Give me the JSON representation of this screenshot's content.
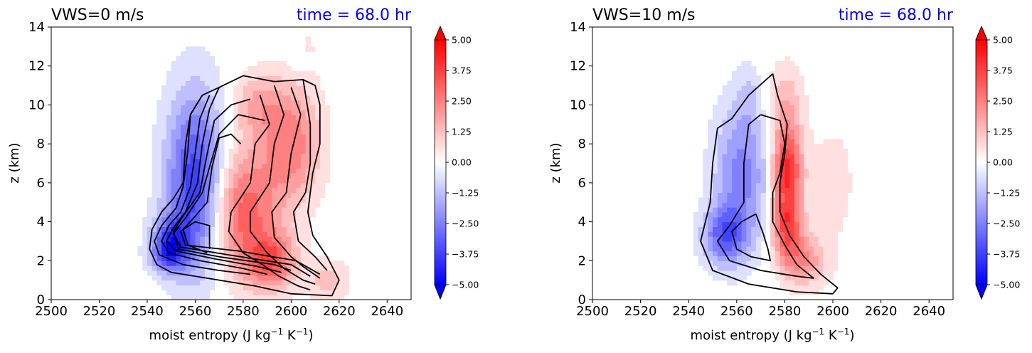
{
  "chart_data": [
    {
      "type": "heatmap",
      "title": "VWS=0 m/s",
      "time_label": "time = 68.0 hr",
      "time_color": "#0000ff",
      "xlabel_prefix": "moist entropy (J kg",
      "xlabel_sup1": "−1",
      "xlabel_mid": " K",
      "xlabel_sup2": "−1",
      "xlabel_suffix": ")",
      "ylabel": "z (km)",
      "xlim": [
        2500,
        2650
      ],
      "ylim": [
        0,
        14
      ],
      "xticks": [
        "2500",
        "2520",
        "2540",
        "2560",
        "2580",
        "2600",
        "2620",
        "2640"
      ],
      "yticks": [
        "0",
        "2",
        "4",
        "6",
        "8",
        "10",
        "12",
        "14"
      ],
      "colorbar": {
        "range": [
          -5,
          5
        ],
        "ticks": [
          "5.00",
          "3.75",
          "2.50",
          "1.25",
          "0.00",
          "−1.25",
          "−2.50",
          "−3.75",
          "−5.00"
        ],
        "colormap": "bwr",
        "extend": "both"
      },
      "features": [
        {
          "kind": "blob",
          "sign": -1,
          "cx": 2560,
          "cy": 6.0,
          "rx": 12,
          "ry": 4.5,
          "amp": 4.0
        },
        {
          "kind": "blob",
          "sign": -1,
          "cx": 2550,
          "cy": 3.0,
          "rx": 8,
          "ry": 1.3,
          "amp": 3.0
        },
        {
          "kind": "blob",
          "sign": -1,
          "cx": 2548,
          "cy": 2.2,
          "rx": 7,
          "ry": 0.8,
          "amp": 1.6
        },
        {
          "kind": "blob",
          "sign": -1,
          "cx": 2605,
          "cy": 12.2,
          "rx": 4,
          "ry": 0.6,
          "amp": 1.0
        },
        {
          "kind": "blob",
          "sign": 1,
          "cx": 2580,
          "cy": 4.5,
          "rx": 14,
          "ry": 3.2,
          "amp": 3.2
        },
        {
          "kind": "blob",
          "sign": 1,
          "cx": 2592,
          "cy": 2.0,
          "rx": 10,
          "ry": 1.4,
          "amp": 3.0
        },
        {
          "kind": "blob",
          "sign": 1,
          "cx": 2600,
          "cy": 8.0,
          "rx": 12,
          "ry": 3.0,
          "amp": 2.6
        },
        {
          "kind": "blob",
          "sign": 1,
          "cx": 2586,
          "cy": 10.0,
          "rx": 10,
          "ry": 1.6,
          "amp": 1.5
        },
        {
          "kind": "blob",
          "sign": 1,
          "cx": 2607,
          "cy": 12.5,
          "rx": 4,
          "ry": 1.2,
          "amp": 0.5
        },
        {
          "kind": "blob",
          "sign": 1,
          "cx": 2615,
          "cy": 1.0,
          "rx": 9,
          "ry": 1.0,
          "amp": 1.2
        }
      ],
      "contours": [
        [
          [
            2563,
            10.5
          ],
          [
            2558,
            9.5
          ],
          [
            2557,
            7.7
          ],
          [
            2555,
            5.8
          ],
          [
            2552,
            4.7
          ],
          [
            2546,
            3.8
          ],
          [
            2543,
            3.0
          ],
          [
            2545,
            2.3
          ],
          [
            2555,
            1.8
          ],
          [
            2570,
            1.5
          ],
          [
            2583,
            1.3
          ]
        ],
        [
          [
            2566,
            10.5
          ],
          [
            2562,
            9.3
          ],
          [
            2560,
            7.5
          ],
          [
            2558,
            5.8
          ],
          [
            2554,
            4.5
          ],
          [
            2549,
            3.8
          ],
          [
            2546,
            3.0
          ],
          [
            2549,
            2.4
          ],
          [
            2562,
            2.0
          ],
          [
            2580,
            1.6
          ],
          [
            2590,
            1.3
          ]
        ],
        [
          [
            2570,
            10.9
          ],
          [
            2566,
            9.8
          ],
          [
            2563,
            8.0
          ],
          [
            2561,
            6.0
          ],
          [
            2556,
            4.5
          ],
          [
            2551,
            3.7
          ],
          [
            2548,
            3.0
          ],
          [
            2552,
            2.5
          ],
          [
            2568,
            2.1
          ],
          [
            2586,
            1.7
          ],
          [
            2596,
            1.4
          ]
        ],
        [
          [
            2583,
            10.3
          ],
          [
            2575,
            10.0
          ],
          [
            2568,
            9.2
          ],
          [
            2565,
            7.5
          ],
          [
            2562,
            5.5
          ],
          [
            2555,
            4.3
          ],
          [
            2551,
            3.5
          ],
          [
            2553,
            2.6
          ],
          [
            2570,
            2.2
          ],
          [
            2593,
            1.8
          ],
          [
            2600,
            1.5
          ]
        ],
        [
          [
            2589,
            9.2
          ],
          [
            2578,
            9.5
          ],
          [
            2570,
            8.5
          ],
          [
            2566,
            6.8
          ],
          [
            2563,
            5.5
          ],
          [
            2556,
            4.2
          ],
          [
            2551,
            3.4
          ],
          [
            2554,
            2.7
          ],
          [
            2574,
            2.3
          ],
          [
            2600,
            1.8
          ],
          [
            2608,
            1.2
          ]
        ],
        [
          [
            2579,
            8.0
          ],
          [
            2575,
            8.5
          ],
          [
            2570,
            8.3
          ],
          [
            2567,
            6.8
          ],
          [
            2565,
            5.0
          ],
          [
            2558,
            4.0
          ],
          [
            2554,
            3.5
          ],
          [
            2556,
            2.8
          ],
          [
            2578,
            2.5
          ],
          [
            2602,
            2.0
          ],
          [
            2612,
            1.3
          ]
        ],
        [
          [
            2565,
            2.4
          ],
          [
            2557,
            2.8
          ],
          [
            2555,
            3.6
          ],
          [
            2560,
            4.0
          ],
          [
            2566,
            3.8
          ],
          [
            2566,
            2.6
          ]
        ],
        [
          [
            2587,
            10.5
          ],
          [
            2591,
            9.0
          ],
          [
            2585,
            8.0
          ],
          [
            2583,
            6.0
          ],
          [
            2575,
            4.5
          ],
          [
            2574,
            3.5
          ],
          [
            2580,
            2.4
          ],
          [
            2588,
            1.8
          ],
          [
            2595,
            1.2
          ],
          [
            2603,
            0.7
          ],
          [
            2608,
            0.5
          ]
        ],
        [
          [
            2593,
            11.0
          ],
          [
            2597,
            9.5
          ],
          [
            2593,
            8.0
          ],
          [
            2591,
            6.0
          ],
          [
            2583,
            4.5
          ],
          [
            2583,
            3.5
          ],
          [
            2590,
            2.4
          ],
          [
            2597,
            1.6
          ],
          [
            2605,
            1.0
          ],
          [
            2610,
            0.8
          ]
        ],
        [
          [
            2600,
            10.9
          ],
          [
            2604,
            9.5
          ],
          [
            2600,
            7.5
          ],
          [
            2598,
            5.5
          ],
          [
            2592,
            4.5
          ],
          [
            2593,
            3.2
          ],
          [
            2600,
            2.2
          ],
          [
            2605,
            1.7
          ],
          [
            2612,
            1.1
          ]
        ],
        [
          [
            2605,
            11.3
          ],
          [
            2608,
            9.0
          ],
          [
            2608,
            7.0
          ],
          [
            2606,
            5.5
          ],
          [
            2601,
            4.5
          ],
          [
            2603,
            3.0
          ],
          [
            2610,
            2.2
          ],
          [
            2615,
            1.5
          ]
        ],
        [
          [
            2570,
            10.9
          ],
          [
            2580,
            11.5
          ],
          [
            2593,
            11.2
          ],
          [
            2605,
            11.3
          ],
          [
            2610,
            11.0
          ],
          [
            2612,
            10.0
          ],
          [
            2612,
            8.0
          ],
          [
            2609,
            6.5
          ],
          [
            2607,
            4.5
          ],
          [
            2609,
            3.3
          ],
          [
            2615,
            2.2
          ],
          [
            2620,
            1.0
          ],
          [
            2617,
            0.2
          ],
          [
            2600,
            0.3
          ],
          [
            2585,
            0.7
          ],
          [
            2565,
            1.1
          ],
          [
            2550,
            1.4
          ],
          [
            2544,
            1.8
          ],
          [
            2541,
            2.6
          ],
          [
            2542,
            3.6
          ],
          [
            2546,
            4.5
          ],
          [
            2551,
            5.2
          ],
          [
            2555,
            6.0
          ],
          [
            2556,
            8.0
          ],
          [
            2558,
            9.5
          ],
          [
            2563,
            10.5
          ],
          [
            2570,
            10.9
          ]
        ]
      ],
      "hidden_note": ""
    },
    {
      "type": "heatmap",
      "title": "VWS=10 m/s",
      "time_label": "time = 68.0 hr",
      "time_color": "#0000ff",
      "xlabel_prefix": "moist entropy (J kg",
      "xlabel_sup1": "−1",
      "xlabel_mid": " K",
      "xlabel_sup2": "−1",
      "xlabel_suffix": ")",
      "ylabel": "z (km)",
      "xlim": [
        2500,
        2650
      ],
      "ylim": [
        0,
        14
      ],
      "xticks": [
        "2500",
        "2520",
        "2540",
        "2560",
        "2580",
        "2600",
        "2620",
        "2640"
      ],
      "yticks": [
        "0",
        "2",
        "4",
        "6",
        "8",
        "10",
        "12",
        "14"
      ],
      "colorbar": {
        "range": [
          -5,
          5
        ],
        "ticks": [
          "5.00",
          "3.75",
          "2.50",
          "1.25",
          "0.00",
          "−1.25",
          "−2.50",
          "−3.75",
          "−5.00"
        ],
        "colormap": "bwr",
        "extend": "both"
      },
      "features": [
        {
          "kind": "blob",
          "sign": -1,
          "cx": 2562,
          "cy": 6.5,
          "rx": 11,
          "ry": 3.5,
          "amp": 2.5
        },
        {
          "kind": "blob",
          "sign": -1,
          "cx": 2555,
          "cy": 3.3,
          "rx": 9,
          "ry": 1.5,
          "amp": 3.0
        },
        {
          "kind": "blob",
          "sign": -1,
          "cx": 2565,
          "cy": 10.5,
          "rx": 5,
          "ry": 1.5,
          "amp": 0.7
        },
        {
          "kind": "blob",
          "sign": 1,
          "cx": 2581,
          "cy": 6.8,
          "rx": 6,
          "ry": 2.0,
          "amp": 4.0
        },
        {
          "kind": "blob",
          "sign": 1,
          "cx": 2581,
          "cy": 3.8,
          "rx": 6,
          "ry": 1.8,
          "amp": 3.5
        },
        {
          "kind": "blob",
          "sign": 1,
          "cx": 2588,
          "cy": 2.0,
          "rx": 9,
          "ry": 1.3,
          "amp": 2.0
        },
        {
          "kind": "blob",
          "sign": 1,
          "cx": 2580,
          "cy": 10.0,
          "rx": 7,
          "ry": 2.0,
          "amp": 1.5
        },
        {
          "kind": "blob",
          "sign": 1,
          "cx": 2600,
          "cy": 6.0,
          "rx": 12,
          "ry": 4.0,
          "amp": 0.5
        }
      ],
      "contours": [
        [
          [
            2575,
            11.6
          ],
          [
            2565,
            10.5
          ],
          [
            2558,
            9.3
          ],
          [
            2552,
            8.8
          ],
          [
            2550,
            7.0
          ],
          [
            2549,
            5.0
          ],
          [
            2545,
            3.0
          ],
          [
            2550,
            1.5
          ],
          [
            2565,
            0.8
          ],
          [
            2585,
            0.4
          ],
          [
            2600,
            0.3
          ],
          [
            2602,
            0.6
          ],
          [
            2595,
            1.3
          ],
          [
            2588,
            2.2
          ],
          [
            2582,
            3.3
          ],
          [
            2578,
            4.5
          ],
          [
            2578,
            6.0
          ],
          [
            2580,
            7.5
          ],
          [
            2581,
            9.0
          ],
          [
            2577,
            10.5
          ],
          [
            2575,
            11.6
          ]
        ],
        [
          [
            2570,
            9.5
          ],
          [
            2565,
            9.0
          ],
          [
            2563,
            7.0
          ],
          [
            2563,
            5.0
          ],
          [
            2557,
            3.8
          ],
          [
            2552,
            3.0
          ],
          [
            2557,
            2.0
          ],
          [
            2570,
            1.5
          ],
          [
            2585,
            1.2
          ],
          [
            2592,
            1.1
          ],
          [
            2585,
            1.8
          ],
          [
            2580,
            2.8
          ],
          [
            2575,
            4.0
          ],
          [
            2575,
            5.5
          ],
          [
            2578,
            6.5
          ],
          [
            2580,
            8.0
          ],
          [
            2578,
            9.2
          ],
          [
            2570,
            9.5
          ]
        ],
        [
          [
            2568,
            4.4
          ],
          [
            2562,
            4.0
          ],
          [
            2558,
            3.5
          ],
          [
            2560,
            2.6
          ],
          [
            2566,
            2.2
          ],
          [
            2574,
            2.0
          ],
          [
            2573,
            2.6
          ],
          [
            2571,
            3.4
          ],
          [
            2568,
            4.4
          ]
        ]
      ],
      "hidden_note": ""
    }
  ]
}
